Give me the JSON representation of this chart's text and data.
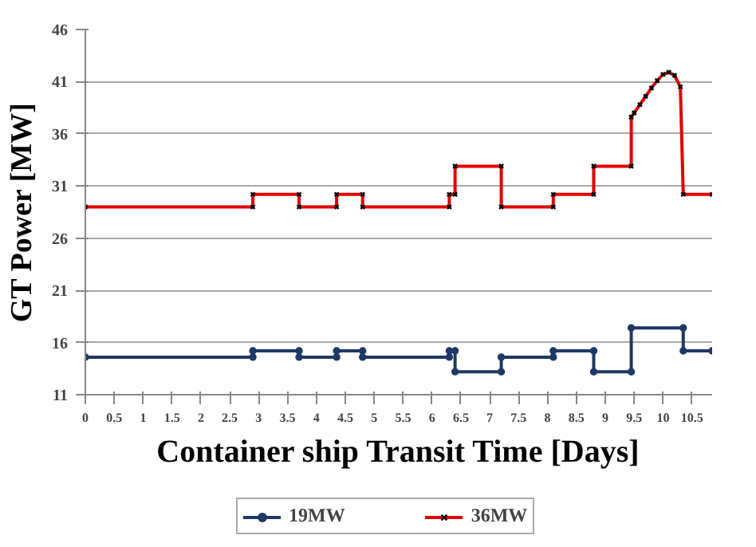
{
  "chart_data": {
    "type": "line",
    "xlabel": "Container ship Transit Time [Days]",
    "ylabel": "GT Power [MW]",
    "xlim": [
      0,
      10.85
    ],
    "xticks": [
      0,
      0.5,
      1,
      1.5,
      2,
      2.5,
      3,
      3.5,
      4,
      4.5,
      5,
      5.5,
      6,
      6.5,
      7,
      7.5,
      8,
      8.5,
      9,
      9.5,
      10,
      10.5
    ],
    "ylim": [
      11,
      46
    ],
    "yticks": [
      11,
      16,
      21,
      26,
      31,
      36,
      41,
      46
    ],
    "grid": "y",
    "legend": "bottom",
    "series": [
      {
        "name": "19MW",
        "color": "#1f3864",
        "marker": "circle",
        "x": [
          0,
          2.9,
          2.9,
          3.7,
          3.7,
          4.35,
          4.35,
          4.8,
          4.8,
          6.3,
          6.3,
          6.4,
          6.4,
          7.2,
          7.2,
          8.1,
          8.1,
          8.8,
          8.8,
          9.45,
          9.45,
          10.35,
          10.35,
          10.85
        ],
        "values": [
          14.6,
          14.6,
          15.2,
          15.2,
          14.6,
          14.6,
          15.2,
          15.2,
          14.6,
          14.6,
          15.2,
          15.2,
          13.2,
          13.2,
          14.6,
          14.6,
          15.2,
          15.2,
          13.2,
          13.2,
          17.4,
          17.4,
          15.2,
          15.2
        ]
      },
      {
        "name": "36MW",
        "color": "#e00000",
        "marker": "cross",
        "x": [
          0,
          2.9,
          2.9,
          3.7,
          3.7,
          4.35,
          4.35,
          4.8,
          4.8,
          6.3,
          6.3,
          6.4,
          6.4,
          7.2,
          7.2,
          8.1,
          8.1,
          8.8,
          8.8,
          9.45,
          9.45,
          9.5,
          9.6,
          9.7,
          9.8,
          9.9,
          10.0,
          10.1,
          10.2,
          10.3,
          10.35,
          10.85
        ],
        "values": [
          29,
          29,
          30.2,
          30.2,
          29,
          29,
          30.2,
          30.2,
          29,
          29,
          30.2,
          30.2,
          32.9,
          32.9,
          29,
          29,
          30.2,
          30.2,
          32.9,
          32.9,
          37.6,
          38.0,
          38.8,
          39.6,
          40.4,
          41.1,
          41.7,
          41.9,
          41.6,
          40.5,
          30.2,
          30.2
        ]
      }
    ]
  }
}
